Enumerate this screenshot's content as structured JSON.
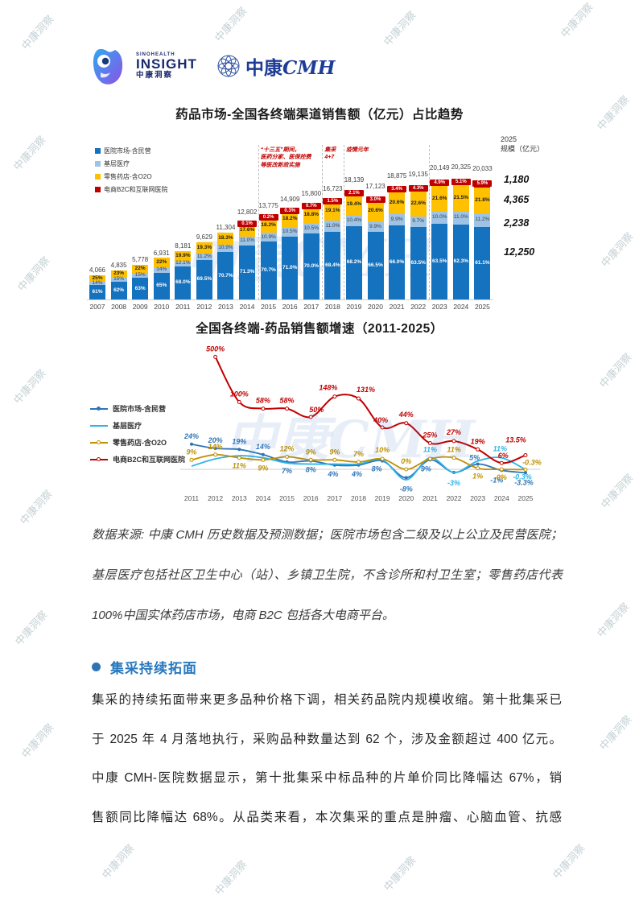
{
  "page": {
    "watermark_text": "中康洞察",
    "watermark_big": "中康CMH"
  },
  "header": {
    "brand_small": "SINOHEALTH",
    "brand_main": "INSIGHT",
    "brand_sub": "中康洞察",
    "brand_right_zh": "中康",
    "brand_right_en": "CMH"
  },
  "chart_data": [
    {
      "type": "bar",
      "title": "药品市场-全国各终端渠道销售额（亿元）占比趋势",
      "stacked": true,
      "categories": [
        "2007",
        "2008",
        "2009",
        "2010",
        "2011",
        "2012",
        "2013",
        "2014",
        "2015",
        "2016",
        "2017",
        "2018",
        "2019",
        "2020",
        "2021",
        "2022",
        "2023",
        "2024",
        "2025"
      ],
      "totals": [
        "4,066",
        "4,835",
        "5,778",
        "6,931",
        "8,181",
        "9,629",
        "11,304",
        "12,802",
        "13,775",
        "14,909",
        "15,800",
        "16,723",
        "18,139",
        "17,123",
        "18,875",
        "19,135",
        "20,149",
        "20,325",
        "20,033"
      ],
      "series": [
        {
          "name": "医院市场-含民营",
          "color": "#1572BF",
          "labels": [
            "61%",
            "62%",
            "63%",
            "65%",
            "68.0%",
            "69.5%",
            "70.7%",
            "71.3%",
            "70.7%",
            "71.0%",
            "70.0%",
            "68.4%",
            "68.2%",
            "66.5%",
            "66.0%",
            "63.5%",
            "63.5%",
            "62.3%",
            "61.1%"
          ]
        },
        {
          "name": "基层医疗",
          "color": "#9DC3E6",
          "labels": [
            "14%",
            "15%",
            "15%",
            "14%",
            "12.1%",
            "11.2%",
            "10.9%",
            "11.0%",
            "10.9%",
            "10.5%",
            "10.5%",
            "11.0%",
            "10.4%",
            "9.9%",
            "9.9%",
            "9.7%",
            "10.0%",
            "11.0%",
            "11.2%"
          ]
        },
        {
          "name": "零售药店-含O2O",
          "color": "#FFC000",
          "labels": [
            "25%",
            "23%",
            "22%",
            "22%",
            "19.9%",
            "19.3%",
            "18.3%",
            "17.6%",
            "18.2%",
            "18.2%",
            "18.8%",
            "19.1%",
            "19.4%",
            "20.6%",
            "20.6%",
            "22.6%",
            "21.6%",
            "21.5%",
            "21.8%"
          ]
        },
        {
          "name": "电商B2C和互联网医院",
          "color": "#C00000",
          "labels": [
            "",
            "",
            "",
            "",
            "",
            "",
            "",
            "0.1%",
            "0.2%",
            "0.3%",
            "0.7%",
            "1.5%",
            "2.1%",
            "3.0%",
            "3.4%",
            "4.3%",
            "4.9%",
            "5.1%",
            "5.9%"
          ]
        }
      ],
      "annotations": [
        {
          "text": "“十三五”期间，\n医药分家、医保控费\n等医改新政实施",
          "from": "2015",
          "to": "2017"
        },
        {
          "text": "集采\n4+7",
          "from": "2018",
          "to": "2018"
        },
        {
          "text": "疫情元年",
          "from": "2019",
          "to": "2020"
        }
      ],
      "dashed_before_years": [
        "2015",
        "2018",
        "2019",
        "2023"
      ],
      "scale_column": {
        "header_line1": "2025",
        "header_line2": "规模（亿元）",
        "values": [
          "1,180",
          "4,365",
          "2,238",
          "12,250"
        ]
      },
      "ylim": [
        0,
        20325
      ]
    },
    {
      "type": "line",
      "title": "全国各终端-药品销售额增速（2011-2025）",
      "x": [
        "2011",
        "2012",
        "2013",
        "2014",
        "2015",
        "2016",
        "2017",
        "2018",
        "2019",
        "2020",
        "2021",
        "2022",
        "2023",
        "2024",
        "2025"
      ],
      "legend_position": "left",
      "series": [
        {
          "name": "医院市场-含民营",
          "color": "#2E75B6",
          "marker": "filled",
          "values": [
            24,
            20,
            19,
            14,
            7,
            8,
            4,
            4,
            8,
            -8,
            9,
            -3,
            5,
            -1,
            -3.3
          ],
          "labels": [
            {
              "i": 0,
              "t": "24%",
              "dx": 0,
              "dy": -7
            },
            {
              "i": 1,
              "t": "20%",
              "dx": 0,
              "dy": -7
            },
            {
              "i": 2,
              "t": "19%",
              "dx": 0,
              "dy": -7
            },
            {
              "i": 3,
              "t": "14%",
              "dx": 0,
              "dy": -7
            },
            {
              "i": 4,
              "t": "7%",
              "dx": 0,
              "dy": 14
            },
            {
              "i": 5,
              "t": "8%",
              "dx": 0,
              "dy": 14
            },
            {
              "i": 6,
              "t": "4%",
              "dx": -2,
              "dy": 14
            },
            {
              "i": 7,
              "t": "4%",
              "dx": -2,
              "dy": 14
            },
            {
              "i": 8,
              "t": "8%",
              "dx": -7,
              "dy": 13
            },
            {
              "i": 9,
              "t": "-8%",
              "dx": 0,
              "dy": 17
            },
            {
              "i": 10,
              "t": "9%",
              "dx": -5,
              "dy": 14
            },
            {
              "i": 12,
              "t": "5%",
              "dx": -4,
              "dy": -5
            },
            {
              "i": 13,
              "t": "-1%",
              "dx": -6,
              "dy": 15
            },
            {
              "i": 14,
              "t": "-3.3%",
              "dx": -2,
              "dy": 15
            }
          ]
        },
        {
          "name": "基层医疗",
          "color": "#2FB3E8",
          "marker": "none",
          "values": [
            3,
            10,
            13,
            11,
            6,
            5,
            5,
            5,
            9,
            -10,
            11,
            -3,
            8,
            11,
            -0.3
          ],
          "labels": [
            {
              "i": 10,
              "t": "11%",
              "dx": 0,
              "dy": -7
            },
            {
              "i": 11,
              "t": "-3%",
              "dx": 0,
              "dy": 16
            },
            {
              "i": 13,
              "t": "11%",
              "dx": -2,
              "dy": -8
            },
            {
              "i": 14,
              "t": "-0.3%",
              "dx": -4,
              "dy": 12
            }
          ]
        },
        {
          "name": "零售药店-含O2O",
          "color": "#BF9000",
          "marker": "hollow",
          "values": [
            9,
            14,
            11,
            9,
            12,
            9,
            9,
            7,
            10,
            0,
            10,
            11,
            1,
            0,
            -0.3
          ],
          "labels": [
            {
              "i": 0,
              "t": "9%",
              "dx": 0,
              "dy": -7
            },
            {
              "i": 1,
              "t": "14%",
              "dx": 0,
              "dy": -7
            },
            {
              "i": 2,
              "t": "11%",
              "dx": 0,
              "dy": 13
            },
            {
              "i": 3,
              "t": "9%",
              "dx": 0,
              "dy": 13
            },
            {
              "i": 4,
              "t": "12%",
              "dx": 0,
              "dy": -7
            },
            {
              "i": 5,
              "t": "9%",
              "dx": 0,
              "dy": -7
            },
            {
              "i": 6,
              "t": "9%",
              "dx": 0,
              "dy": -7
            },
            {
              "i": 7,
              "t": "7%",
              "dx": 0,
              "dy": -7
            },
            {
              "i": 8,
              "t": "10%",
              "dx": 0,
              "dy": -8
            },
            {
              "i": 9,
              "t": "0%",
              "dx": 0,
              "dy": -7
            },
            {
              "i": 11,
              "t": "11%",
              "dx": 0,
              "dy": -7
            },
            {
              "i": 12,
              "t": "1%",
              "dx": 0,
              "dy": 13
            },
            {
              "i": 13,
              "t": "0%",
              "dx": 0,
              "dy": 13
            },
            {
              "i": 14,
              "t": "-0.3%",
              "dx": 8,
              "dy": -6
            }
          ]
        },
        {
          "name": "电商B2C和互联网医院",
          "color": "#C00000",
          "marker": "hollow",
          "values": [
            null,
            500,
            100,
            58,
            58,
            50,
            148,
            131,
            40,
            44,
            25,
            27,
            19,
            6,
            13.5
          ],
          "labels": [
            {
              "i": 1,
              "t": "500%",
              "dx": 0,
              "dy": -7
            },
            {
              "i": 2,
              "t": "100%",
              "dx": 0,
              "dy": -7
            },
            {
              "i": 3,
              "t": "58%",
              "dx": 0,
              "dy": -7
            },
            {
              "i": 4,
              "t": "58%",
              "dx": 0,
              "dy": -7
            },
            {
              "i": 5,
              "t": "50%",
              "dx": 7,
              "dy": -6
            },
            {
              "i": 6,
              "t": "148%",
              "dx": -8,
              "dy": -8
            },
            {
              "i": 7,
              "t": "131%",
              "dx": 9,
              "dy": -8
            },
            {
              "i": 8,
              "t": "40%",
              "dx": -2,
              "dy": -6
            },
            {
              "i": 9,
              "t": "44%",
              "dx": 0,
              "dy": -8
            },
            {
              "i": 10,
              "t": "25%",
              "dx": 0,
              "dy": -7
            },
            {
              "i": 11,
              "t": "27%",
              "dx": 0,
              "dy": -8
            },
            {
              "i": 12,
              "t": "19%",
              "dx": 0,
              "dy": -7
            },
            {
              "i": 13,
              "t": "6%",
              "dx": 2,
              "dy": -6
            },
            {
              "i": 14,
              "t": "13.5%",
              "dx": -12,
              "dy": -16
            }
          ]
        }
      ],
      "ylim": [
        -15,
        520
      ],
      "grid": false
    }
  ],
  "datasource": {
    "lines": [
      "数据来源: 中康 CMH 历史数据及预测数据；医院市场包含二级及以上公立及民营医院；",
      "基层医疗包括社区卫生中心（站）、乡镇卫生院，不含诊所和村卫生室；零售药店代表",
      "100%中国实体药店市场，电商 B2C 包括各大电商平台。"
    ]
  },
  "section": {
    "heading": "集采持续拓面",
    "body_lines": [
      "集采的持续拓面带来更多品种价格下调，相关药品院内规模收缩。第十批集采已",
      "于 2025 年 4 月落地执行，采购品种数量达到 62 个，涉及金额超过 400 亿元。",
      "中康 CMH-医院数据显示，第十批集采中标品种的片单价同比降幅达 67%，销",
      "售额同比降幅达 68%。从品类来看，本次集采的重点是肿瘤、心脑血管、抗感"
    ]
  }
}
